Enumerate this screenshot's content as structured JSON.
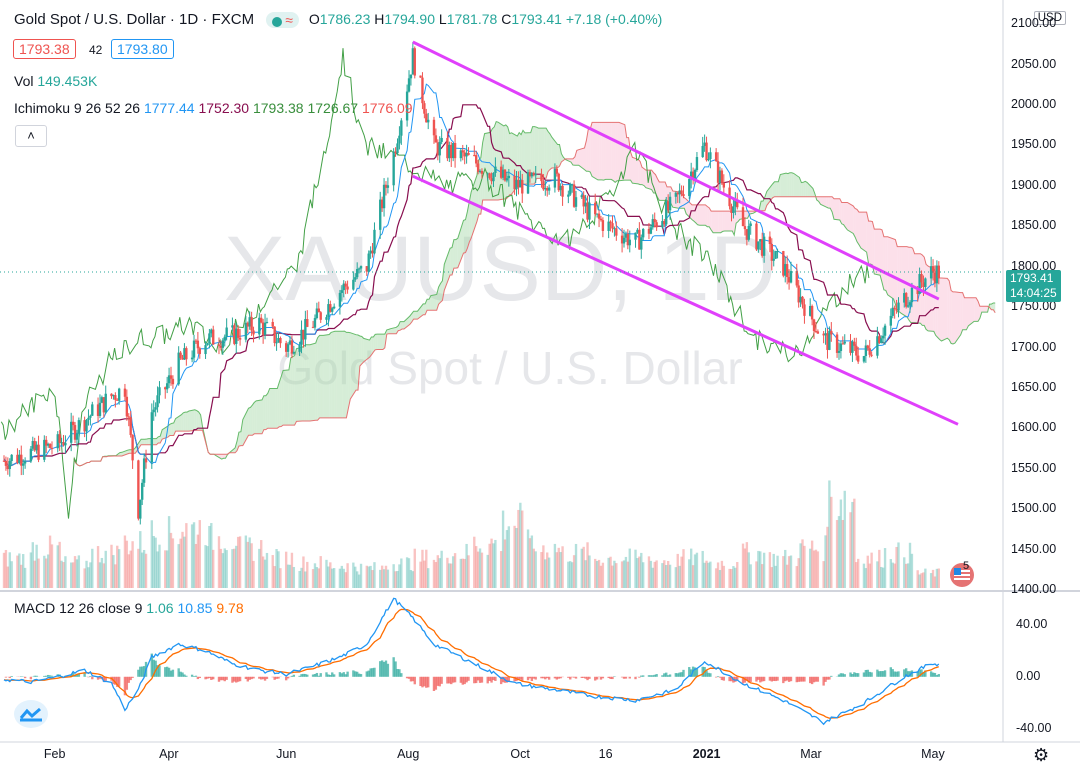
{
  "header": {
    "symbol": "Gold Spot / U.S. Dollar · 1D · FXCM",
    "open_label": "O",
    "open": "1786.23",
    "high_label": "H",
    "high": "1794.90",
    "low_label": "L",
    "low": "1781.78",
    "close_label": "C",
    "close": "1793.41",
    "change": "+7.18 (+0.40%)"
  },
  "trade": {
    "sell": "1793.38",
    "spread": "42",
    "buy": "1793.80"
  },
  "volume": {
    "label": "Vol",
    "value": "149.453K"
  },
  "ichimoku": {
    "label": "Ichimoku 9 26 52 26",
    "v1": "1777.44",
    "v2": "1752.30",
    "v3": "1793.38",
    "v4": "1726.67",
    "v5": "1776.09"
  },
  "macd": {
    "label": "MACD 12 26 close 9",
    "v1": "1.06",
    "v2": "10.85",
    "v3": "9.78"
  },
  "watermark": {
    "main": "XAUUSD, 1D",
    "sub": "Gold Spot / U.S. Dollar"
  },
  "price_axis": {
    "currency": "USD",
    "ticks": [
      "2100.00",
      "2050.00",
      "2000.00",
      "1950.00",
      "1900.00",
      "1850.00",
      "1800.00",
      "1750.00",
      "1700.00",
      "1650.00",
      "1600.00",
      "1550.00",
      "1500.00",
      "1450.00",
      "1400.00"
    ],
    "last_price": "1793.41",
    "countdown": "14:04:25"
  },
  "macd_axis": {
    "ticks": [
      "40.00",
      "0.00",
      "-40.00"
    ]
  },
  "time_axis": {
    "labels": [
      "Feb",
      "Apr",
      "Jun",
      "Aug",
      "Oct",
      "16",
      "2021",
      "Mar",
      "May"
    ]
  },
  "event_badge": "5",
  "colors": {
    "up": "#26a69a",
    "down": "#ef5350",
    "channel": "#e040fb",
    "tenkan": "#2196f3",
    "kijun": "#880e4f",
    "lagging": "#43a047",
    "cloud_up": "#a5d6a7",
    "cloud_down": "#f8bbd0",
    "macd": "#2196f3",
    "signal": "#ff6d00"
  },
  "chart_data": {
    "type": "candlestick",
    "title": "Gold Spot / U.S. Dollar",
    "x": [
      "2020-01-06",
      "2020-01-20",
      "2020-02-03",
      "2020-02-17",
      "2020-03-02",
      "2020-03-09",
      "2020-03-16",
      "2020-03-23",
      "2020-04-06",
      "2020-04-20",
      "2020-05-04",
      "2020-05-18",
      "2020-06-01",
      "2020-06-15",
      "2020-06-29",
      "2020-07-13",
      "2020-07-27",
      "2020-08-06",
      "2020-08-17",
      "2020-09-07",
      "2020-09-28",
      "2020-10-19",
      "2020-11-09",
      "2020-11-30",
      "2020-12-21",
      "2021-01-05",
      "2021-01-25",
      "2021-02-15",
      "2021-03-08",
      "2021-03-29",
      "2021-04-19",
      "2021-05-03"
    ],
    "close": [
      1560,
      1570,
      1580,
      1610,
      1640,
      1650,
      1500,
      1620,
      1680,
      1710,
      1715,
      1730,
      1700,
      1730,
      1770,
      1800,
      1940,
      2060,
      1950,
      1930,
      1900,
      1910,
      1860,
      1830,
      1880,
      1950,
      1850,
      1800,
      1710,
      1690,
      1760,
      1793
    ],
    "ylim": [
      1400,
      2130
    ],
    "volume": [
      60,
      80,
      50,
      70,
      90,
      110,
      120,
      100,
      80,
      60,
      50,
      45,
      40,
      50,
      60,
      70,
      90,
      130,
      80,
      70,
      60,
      60,
      55,
      60,
      50,
      70,
      60,
      80,
      180,
      60,
      70,
      30
    ],
    "channel": {
      "upper": [
        [
          "2020-08-06",
          2078
        ],
        [
          "2021-05-07",
          1760
        ]
      ],
      "lower": [
        [
          "2020-08-06",
          1912
        ],
        [
          "2021-05-17",
          1605
        ]
      ]
    },
    "macd_series": [
      -2,
      -4,
      0,
      5,
      -5,
      -25,
      -10,
      15,
      25,
      20,
      10,
      5,
      2,
      8,
      15,
      25,
      60,
      45,
      25,
      10,
      -5,
      -10,
      -15,
      -18,
      -10,
      12,
      -5,
      -18,
      -35,
      -20,
      0,
      10
    ],
    "macd_ylim": [
      -50,
      65
    ]
  }
}
